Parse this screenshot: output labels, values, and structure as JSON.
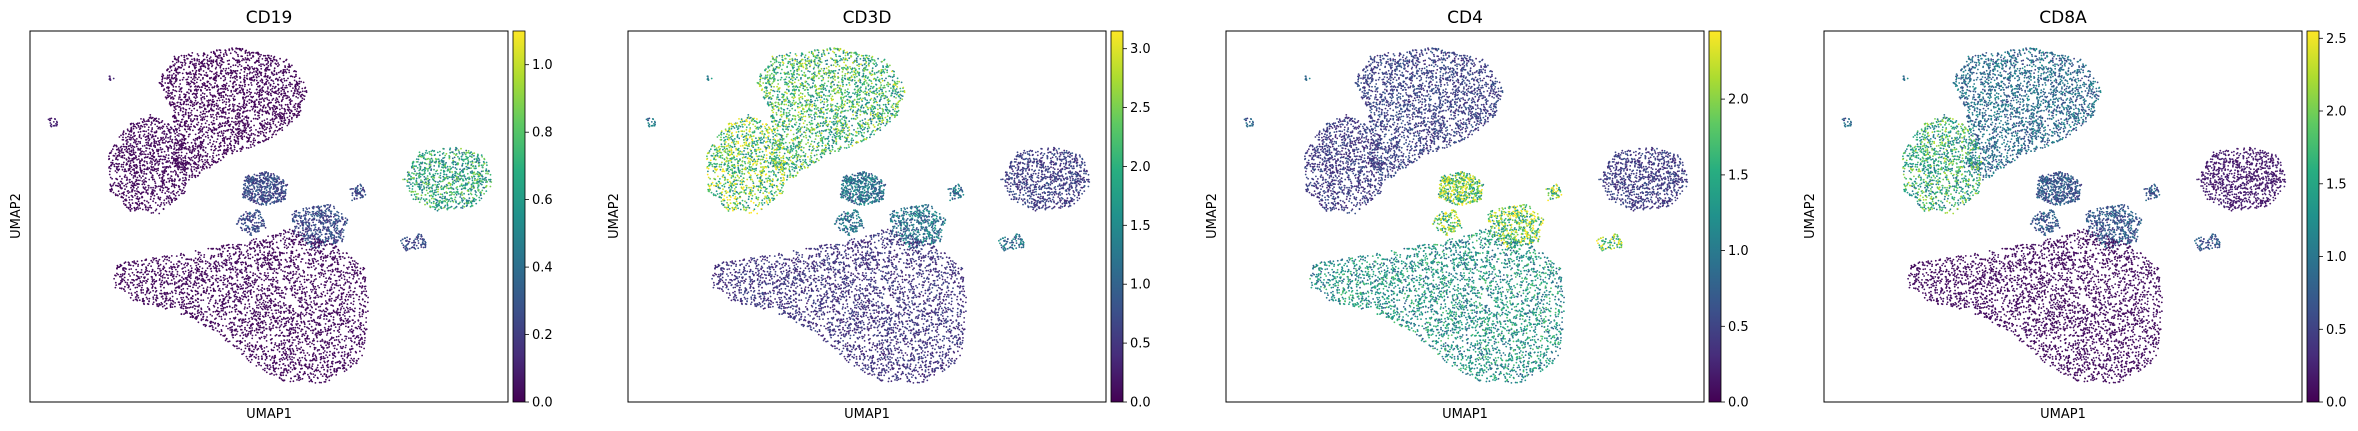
{
  "figure": {
    "colormap": "viridis",
    "panel_count": 4
  },
  "chart_data": [
    {
      "type": "scatter",
      "title": "CD19",
      "xlabel": "UMAP1",
      "ylabel": "UMAP2",
      "colorbar": {
        "min": 0.0,
        "max": 1.1,
        "ticks": [
          0.0,
          0.2,
          0.4,
          0.6,
          0.8,
          1.0
        ],
        "tick_labels": [
          "0.0",
          "0.2",
          "0.4",
          "0.6",
          "0.8",
          "1.0"
        ]
      },
      "cluster_levels": {
        "left_top_blob": 0.02,
        "left_wing": 0.03,
        "bottom_blob": 0.03,
        "right_blob": 0.65,
        "small_islands": 0.25,
        "far_left_dots": 0.1
      }
    },
    {
      "type": "scatter",
      "title": "CD3D",
      "xlabel": "UMAP1",
      "ylabel": "UMAP2",
      "colorbar": {
        "min": 0.0,
        "max": 3.15,
        "ticks": [
          0.0,
          0.5,
          1.0,
          1.5,
          2.0,
          2.5,
          3.0
        ],
        "tick_labels": [
          "0.0",
          "0.5",
          "1.0",
          "1.5",
          "2.0",
          "2.5",
          "3.0"
        ]
      },
      "cluster_levels": {
        "left_top_blob": 2.1,
        "left_wing": 2.4,
        "bottom_blob": 0.5,
        "right_blob": 0.6,
        "small_islands": 1.2,
        "far_left_dots": 1.3
      }
    },
    {
      "type": "scatter",
      "title": "CD4",
      "xlabel": "UMAP1",
      "ylabel": "UMAP2",
      "colorbar": {
        "min": 0.0,
        "max": 2.45,
        "ticks": [
          0.0,
          0.5,
          1.0,
          1.5,
          2.0
        ],
        "tick_labels": [
          "0.0",
          "0.5",
          "1.0",
          "1.5",
          "2.0"
        ]
      },
      "cluster_levels": {
        "left_top_blob": 0.5,
        "left_wing": 0.45,
        "bottom_blob": 1.25,
        "right_blob": 0.45,
        "small_islands": 1.9,
        "far_left_dots": 0.8
      }
    },
    {
      "type": "scatter",
      "title": "CD8A",
      "xlabel": "UMAP1",
      "ylabel": "UMAP2",
      "colorbar": {
        "min": 0.0,
        "max": 2.55,
        "ticks": [
          0.0,
          0.5,
          1.0,
          1.5,
          2.0,
          2.5
        ],
        "tick_labels": [
          "0.0",
          "0.5",
          "1.0",
          "1.5",
          "2.0",
          "2.5"
        ]
      },
      "cluster_levels": {
        "left_top_blob": 0.9,
        "left_wing": 1.6,
        "bottom_blob": 0.1,
        "right_blob": 0.2,
        "small_islands": 0.7,
        "far_left_dots": 0.9
      }
    }
  ]
}
